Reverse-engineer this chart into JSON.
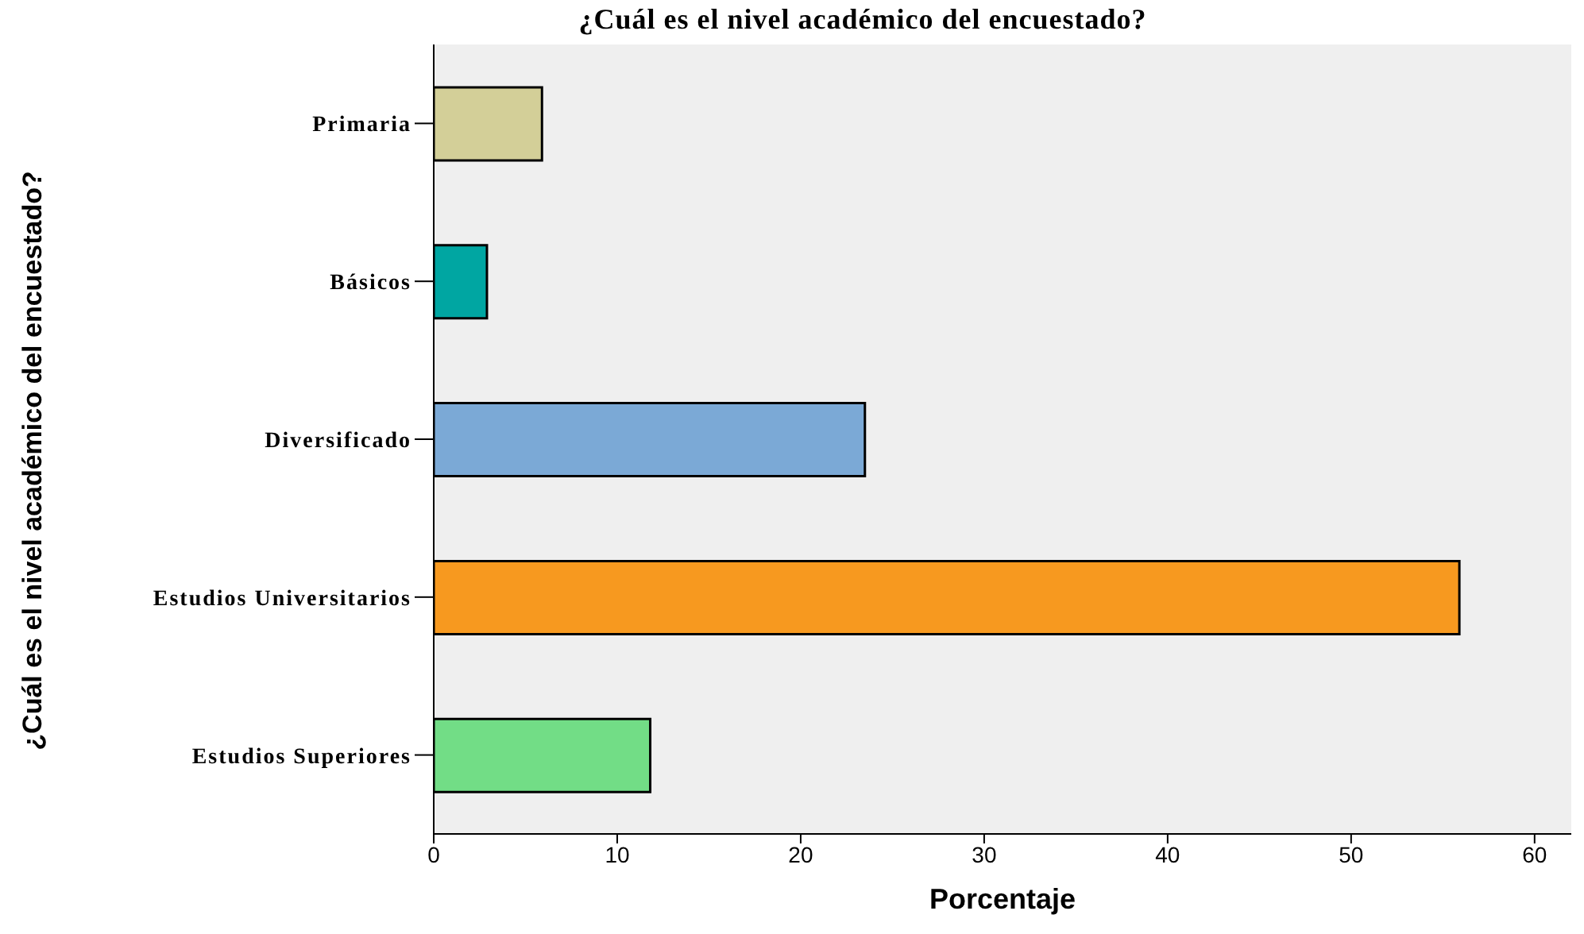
{
  "chart_data": {
    "type": "bar",
    "orientation": "horizontal",
    "title": "¿Cuál es el nivel académico del encuestado?",
    "xlabel": "Porcentaje",
    "ylabel": "¿Cuál es el nivel académico del encuestado?",
    "categories": [
      "Primaria",
      "Básicos",
      "Diversificado",
      "Estudios Universitarios",
      "Estudios Superiores"
    ],
    "values": [
      5.9,
      2.9,
      23.5,
      55.9,
      11.8
    ],
    "colors": [
      "#d3cf98",
      "#00a6a2",
      "#7ba9d6",
      "#f7991f",
      "#72dd86"
    ],
    "xlim": [
      0,
      62
    ],
    "xticks": [
      0,
      10,
      20,
      30,
      40,
      50,
      60
    ],
    "grid": false
  }
}
